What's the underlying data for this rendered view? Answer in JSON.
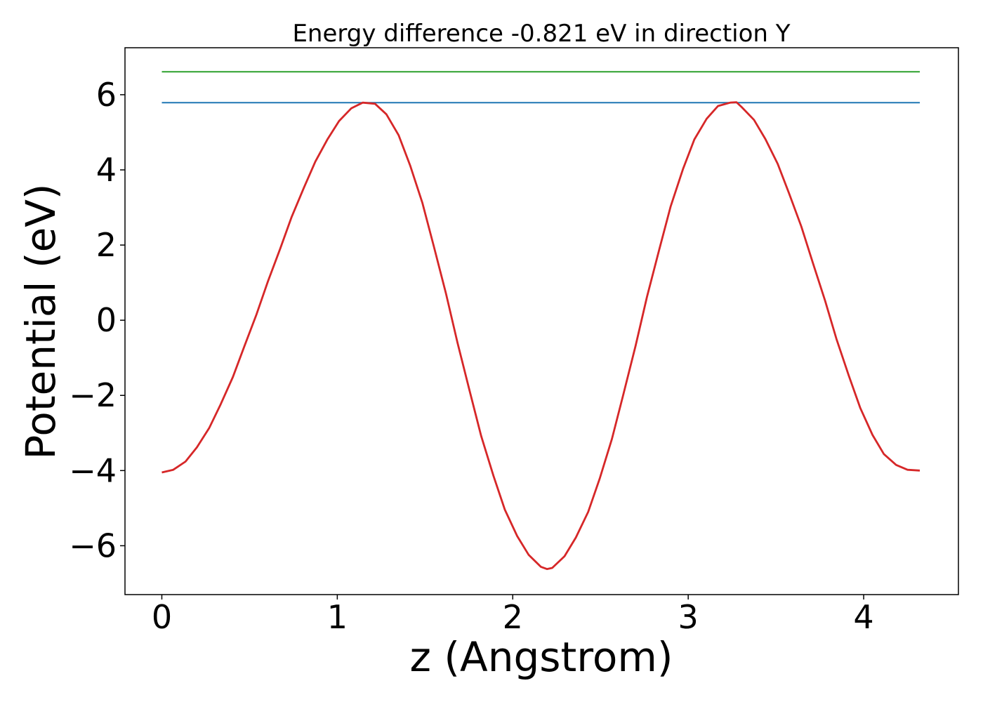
{
  "chart_data": {
    "type": "line",
    "title": "Energy difference -0.821 eV in direction Y",
    "xlabel": "z (Angstrom)",
    "ylabel": "Potential (eV)",
    "xlim": [
      -0.21,
      4.54
    ],
    "ylim": [
      -7.3,
      7.25
    ],
    "xticks": [
      0,
      1,
      2,
      3,
      4
    ],
    "xtick_labels": [
      "0",
      "1",
      "2",
      "3",
      "4"
    ],
    "yticks": [
      -6,
      -4,
      -2,
      0,
      2,
      4,
      6
    ],
    "ytick_labels": [
      "−6",
      "−4",
      "−2",
      "0",
      "2",
      "4",
      "6"
    ],
    "grid": false,
    "colors": {
      "potential": "#d62728",
      "level_blue": "#1f77b4",
      "level_green": "#2ca02c"
    },
    "series": [
      {
        "key": "level_green",
        "x": [
          0,
          4.32
        ],
        "y": [
          6.61,
          6.61
        ]
      },
      {
        "key": "level_blue",
        "x": [
          0,
          4.32
        ],
        "y": [
          5.79,
          5.79
        ]
      },
      {
        "key": "potential",
        "x": [
          0.0,
          0.065,
          0.135,
          0.2,
          0.27,
          0.335,
          0.405,
          0.47,
          0.54,
          0.605,
          0.675,
          0.74,
          0.81,
          0.875,
          0.945,
          1.01,
          1.08,
          1.145,
          1.215,
          1.28,
          1.35,
          1.415,
          1.485,
          1.55,
          1.62,
          1.685,
          1.755,
          1.82,
          1.89,
          1.955,
          2.025,
          2.09,
          2.16,
          2.195,
          2.225,
          2.295,
          2.36,
          2.43,
          2.495,
          2.565,
          2.63,
          2.7,
          2.765,
          2.835,
          2.9,
          2.97,
          3.035,
          3.105,
          3.17,
          3.24,
          3.275,
          3.305,
          3.375,
          3.44,
          3.51,
          3.575,
          3.645,
          3.71,
          3.78,
          3.845,
          3.915,
          3.98,
          4.05,
          4.115,
          4.185,
          4.25,
          4.32
        ],
        "y": [
          -4.05,
          -3.98,
          -3.76,
          -3.38,
          -2.87,
          -2.24,
          -1.51,
          -0.7,
          0.16,
          1.04,
          1.91,
          2.75,
          3.53,
          4.22,
          4.82,
          5.3,
          5.64,
          5.79,
          5.76,
          5.48,
          4.92,
          4.12,
          3.12,
          1.97,
          0.7,
          -0.6,
          -1.89,
          -3.08,
          -4.14,
          -5.04,
          -5.74,
          -6.24,
          -6.56,
          -6.62,
          -6.59,
          -6.28,
          -5.78,
          -5.1,
          -4.22,
          -3.16,
          -1.98,
          -0.68,
          0.62,
          1.88,
          3.03,
          4.02,
          4.81,
          5.36,
          5.7,
          5.79,
          5.8,
          5.67,
          5.33,
          4.82,
          4.16,
          3.37,
          2.49,
          1.53,
          0.52,
          -0.5,
          -1.47,
          -2.33,
          -3.05,
          -3.56,
          -3.85,
          -3.98,
          -4.0
        ]
      }
    ]
  }
}
